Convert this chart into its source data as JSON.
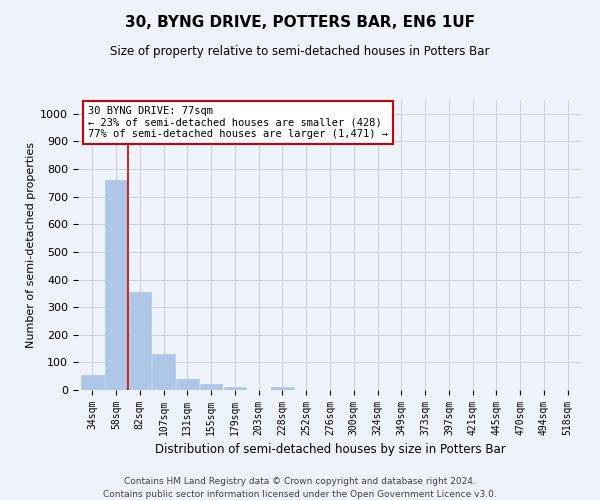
{
  "title": "30, BYNG DRIVE, POTTERS BAR, EN6 1UF",
  "subtitle": "Size of property relative to semi-detached houses in Potters Bar",
  "xlabel": "Distribution of semi-detached houses by size in Potters Bar",
  "ylabel": "Number of semi-detached properties",
  "categories": [
    "34sqm",
    "58sqm",
    "82sqm",
    "107sqm",
    "131sqm",
    "155sqm",
    "179sqm",
    "203sqm",
    "228sqm",
    "252sqm",
    "276sqm",
    "300sqm",
    "324sqm",
    "349sqm",
    "373sqm",
    "397sqm",
    "421sqm",
    "445sqm",
    "470sqm",
    "494sqm",
    "518sqm"
  ],
  "values": [
    55,
    760,
    355,
    130,
    40,
    20,
    10,
    0,
    10,
    0,
    0,
    0,
    0,
    0,
    0,
    0,
    0,
    0,
    0,
    0,
    0
  ],
  "bar_color": "#aec6e8",
  "grid_color": "#c8d0e0",
  "background_color": "#eef2fa",
  "property_line_x": 1.5,
  "annotation_text": "30 BYNG DRIVE: 77sqm\n← 23% of semi-detached houses are smaller (428)\n77% of semi-detached houses are larger (1,471) →",
  "annotation_box_color": "#ffffff",
  "annotation_box_edge": "#cc0000",
  "ylim": [
    0,
    1050
  ],
  "yticks": [
    0,
    100,
    200,
    300,
    400,
    500,
    600,
    700,
    800,
    900,
    1000
  ],
  "footer1": "Contains HM Land Registry data © Crown copyright and database right 2024.",
  "footer2": "Contains public sector information licensed under the Open Government Licence v3.0."
}
